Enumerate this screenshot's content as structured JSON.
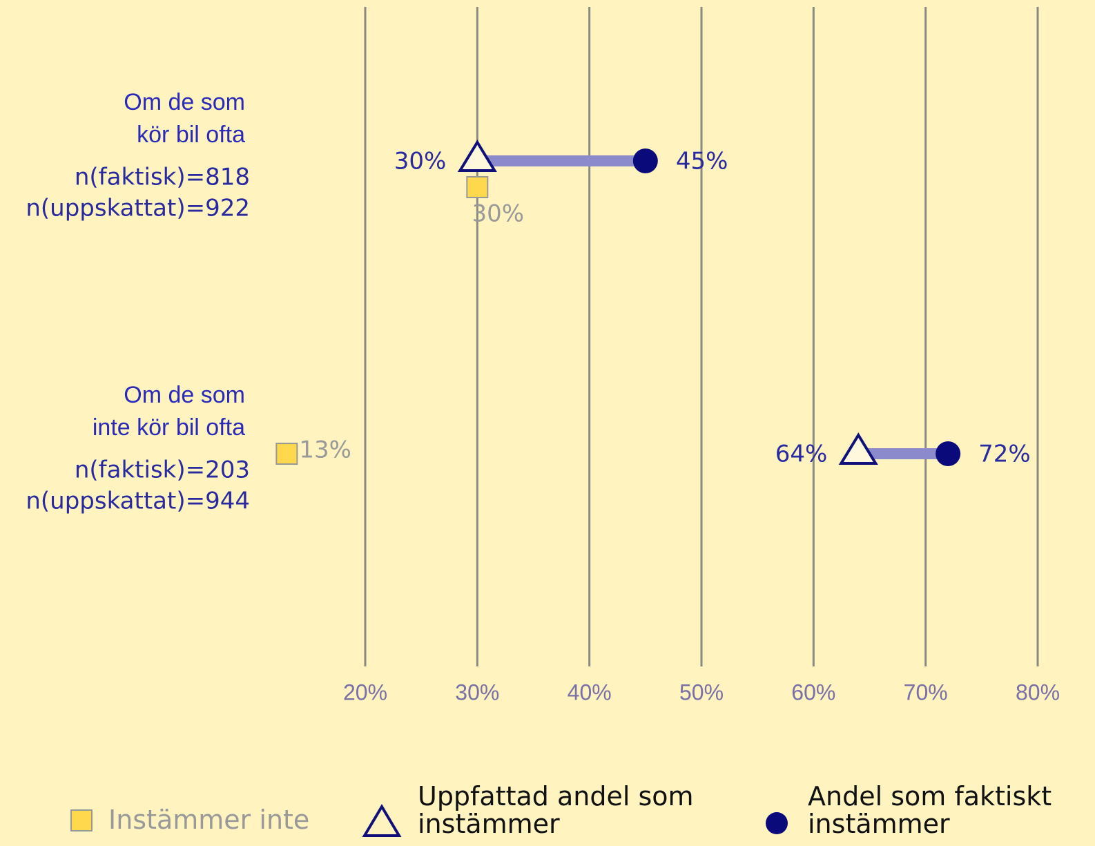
{
  "chart_data": {
    "type": "dumbbell",
    "categories": [
      [
        "Om de som",
        "kör bil ofta"
      ],
      [
        "Om de som",
        "inte kör bil ofta"
      ]
    ],
    "annotations": [
      [
        "n(faktisk)=818",
        "n(uppskattat)=922"
      ],
      [
        "n(faktisk)=203",
        "n(uppskattat)=944"
      ]
    ],
    "series": [
      {
        "name": "Uppfattad andel som instämmer",
        "color": "#10107a",
        "marker": "triangle",
        "values": [
          30,
          64
        ],
        "value_labels": [
          "30%",
          "64%"
        ]
      },
      {
        "name": "Andel som faktiskt instämmer",
        "color": "#0a0a7a",
        "marker": "circle",
        "values": [
          45,
          72
        ],
        "value_labels": [
          "45%",
          "72%"
        ]
      },
      {
        "name": "Instämmer inte",
        "color": "#ffd84d",
        "marker": "square",
        "values": [
          30,
          13
        ],
        "value_labels": [
          "30%",
          "13%"
        ]
      }
    ],
    "xlim": [
      20,
      80
    ],
    "xticks": [
      {
        "value": 20,
        "label": "20%"
      },
      {
        "value": 30,
        "label": "30%"
      },
      {
        "value": 40,
        "label": "40%"
      },
      {
        "value": 50,
        "label": "50%"
      },
      {
        "value": 60,
        "label": "60%"
      },
      {
        "value": 70,
        "label": "70%"
      },
      {
        "value": 80,
        "label": "80%"
      }
    ],
    "grid": true
  }
}
